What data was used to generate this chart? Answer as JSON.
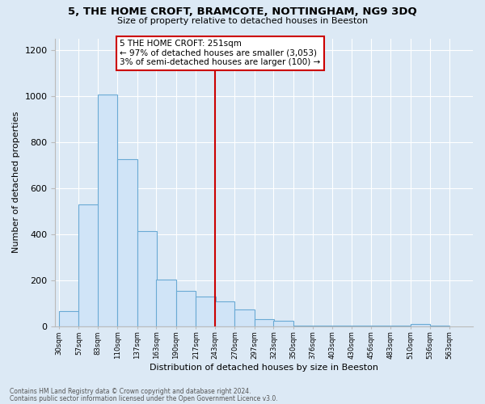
{
  "title": "5, THE HOME CROFT, BRAMCOTE, NOTTINGHAM, NG9 3DQ",
  "subtitle": "Size of property relative to detached houses in Beeston",
  "xlabel": "Distribution of detached houses by size in Beeston",
  "ylabel": "Number of detached properties",
  "bar_color": "#d0e4f7",
  "bar_edge_color": "#6aaad4",
  "background_color": "#dce9f5",
  "plot_bg_color": "#dce9f5",
  "grid_color": "#ffffff",
  "property_line_color": "#cc0000",
  "annotation_box_color": "#cc0000",
  "annotation_title": "5 THE HOME CROFT: 251sqm",
  "annotation_line1": "← 97% of detached houses are smaller (3,053)",
  "annotation_line2": "3% of semi-detached houses are larger (100) →",
  "bin_labels": [
    "30sqm",
    "57sqm",
    "83sqm",
    "110sqm",
    "137sqm",
    "163sqm",
    "190sqm",
    "217sqm",
    "243sqm",
    "270sqm",
    "297sqm",
    "323sqm",
    "350sqm",
    "376sqm",
    "403sqm",
    "430sqm",
    "456sqm",
    "483sqm",
    "510sqm",
    "536sqm",
    "563sqm"
  ],
  "bin_starts": [
    30,
    57,
    83,
    110,
    137,
    163,
    190,
    217,
    243,
    270,
    297,
    323,
    350,
    376,
    403,
    430,
    456,
    483,
    510,
    536,
    563
  ],
  "bin_width": 27,
  "bin_heights": [
    65,
    530,
    1005,
    725,
    415,
    205,
    155,
    130,
    110,
    75,
    30,
    25,
    5,
    5,
    5,
    5,
    5,
    5,
    10,
    5,
    0
  ],
  "property_line_x": 243,
  "ylim": [
    0,
    1250
  ],
  "yticks": [
    0,
    200,
    400,
    600,
    800,
    1000,
    1200
  ],
  "footnote1": "Contains HM Land Registry data © Crown copyright and database right 2024.",
  "footnote2": "Contains public sector information licensed under the Open Government Licence v3.0."
}
